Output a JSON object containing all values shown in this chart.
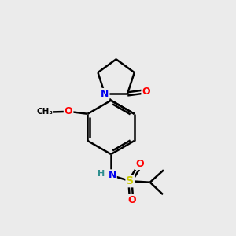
{
  "bg_color": "#ebebeb",
  "atom_colors": {
    "C": "#000000",
    "N": "#0000ee",
    "O": "#ff0000",
    "S": "#cccc00",
    "H": "#2f8f8f"
  },
  "bond_color": "#000000",
  "bond_width": 1.8,
  "figsize": [
    3.0,
    3.0
  ],
  "dpi": 100,
  "xlim": [
    0,
    10
  ],
  "ylim": [
    0,
    10
  ]
}
